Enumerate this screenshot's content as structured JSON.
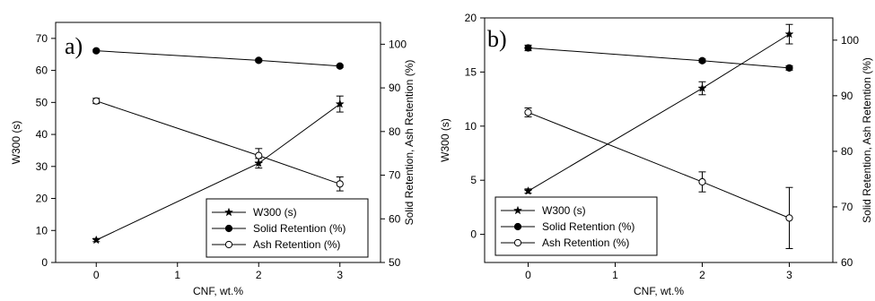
{
  "chart_data": [
    {
      "type": "line",
      "panel_label": "a)",
      "xlabel": "CNF, wt.%",
      "ylabel_left": "W300 (s)",
      "ylabel_right": "Solid Retention, Ash Retention (%)",
      "x_ticks": [
        "0",
        "1",
        "2",
        "3"
      ],
      "y_left_ticks": [
        "0",
        "10",
        "20",
        "30",
        "40",
        "50",
        "60",
        "70"
      ],
      "y_right_ticks": [
        "50",
        "60",
        "70",
        "80",
        "90",
        "100"
      ],
      "xlim": [
        -0.5,
        3.5
      ],
      "ylim_left": [
        0,
        75
      ],
      "ylim_right": [
        50,
        105
      ],
      "legend_position": "bottom-right",
      "series": [
        {
          "name": "W300 (s)",
          "axis": "left",
          "marker": "star",
          "x": [
            0,
            2,
            3
          ],
          "y": [
            7,
            31,
            49.5
          ],
          "err": [
            0.5,
            1.5,
            2.5
          ]
        },
        {
          "name": "Solid Retention (%)",
          "axis": "right",
          "marker": "filled-circle",
          "x": [
            0,
            2,
            3
          ],
          "y": [
            98.5,
            96.3,
            95
          ],
          "err": [
            0.3,
            0.3,
            0.3
          ]
        },
        {
          "name": "Ash Retention (%)",
          "axis": "right",
          "marker": "open-circle",
          "x": [
            0,
            2,
            3
          ],
          "y": [
            87,
            74.5,
            68
          ],
          "err": [
            0.6,
            1.6,
            1.6
          ]
        }
      ]
    },
    {
      "type": "line",
      "panel_label": "b)",
      "xlabel": "CNF, wt.%",
      "ylabel_left": "W300 (s)",
      "ylabel_right": "Solid Retention, Ash Retention (%)",
      "x_ticks": [
        "0",
        "1",
        "2",
        "3"
      ],
      "y_left_ticks": [
        "0",
        "5",
        "10",
        "15",
        "20"
      ],
      "y_right_ticks": [
        "60",
        "70",
        "80",
        "90",
        "100"
      ],
      "xlim": [
        -0.5,
        3.5
      ],
      "ylim_left": [
        -2.6,
        20
      ],
      "ylim_right": [
        60,
        104
      ],
      "legend_position": "bottom-left",
      "series": [
        {
          "name": "W300 (s)",
          "axis": "left",
          "marker": "star",
          "x": [
            0,
            2,
            3
          ],
          "y": [
            4,
            13.5,
            18.5
          ],
          "err": [
            0.2,
            0.6,
            0.9
          ]
        },
        {
          "name": "Solid Retention (%)",
          "axis": "right",
          "marker": "filled-circle",
          "x": [
            0,
            2,
            3
          ],
          "y": [
            98.6,
            96.3,
            95
          ],
          "err": [
            0.5,
            0.3,
            0.4
          ]
        },
        {
          "name": "Ash Retention (%)",
          "axis": "right",
          "marker": "open-circle",
          "x": [
            0,
            2,
            3
          ],
          "y": [
            87,
            74.5,
            68
          ],
          "err": [
            0.8,
            1.8,
            5.5
          ]
        }
      ]
    }
  ]
}
